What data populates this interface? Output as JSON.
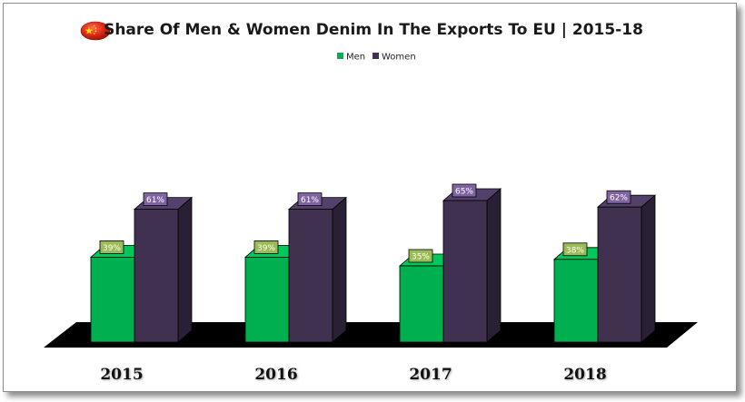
{
  "chart_data": {
    "type": "bar",
    "title": "Share Of Men & Women Denim In The Exports To EU | 2015-18",
    "categories": [
      "2015",
      "2016",
      "2017",
      "2018"
    ],
    "series": [
      {
        "name": "Men",
        "values": [
          39,
          39,
          35,
          38
        ],
        "labels": [
          "39%",
          "39%",
          "35%",
          "38%"
        ],
        "color": "#00b050"
      },
      {
        "name": "Women",
        "values": [
          61,
          61,
          65,
          62
        ],
        "labels": [
          "61%",
          "61%",
          "65%",
          "62%"
        ],
        "color": "#403151"
      }
    ],
    "ylim": [
      0,
      100
    ],
    "legend_position": "top-center",
    "style": "3d-column",
    "grid": false,
    "flag_icon": "china-flag-icon"
  },
  "colors": {
    "men_front": "#00b050",
    "men_side": "#007a37",
    "men_top": "#00c85a",
    "women_front": "#403151",
    "women_side": "#2a2036",
    "women_top": "#52416a",
    "men_label_bg": "#9bbb59",
    "women_label_bg": "#8064a2",
    "floor": "#000000",
    "flag_red": "#de2910",
    "flag_yellow": "#ffde00"
  }
}
